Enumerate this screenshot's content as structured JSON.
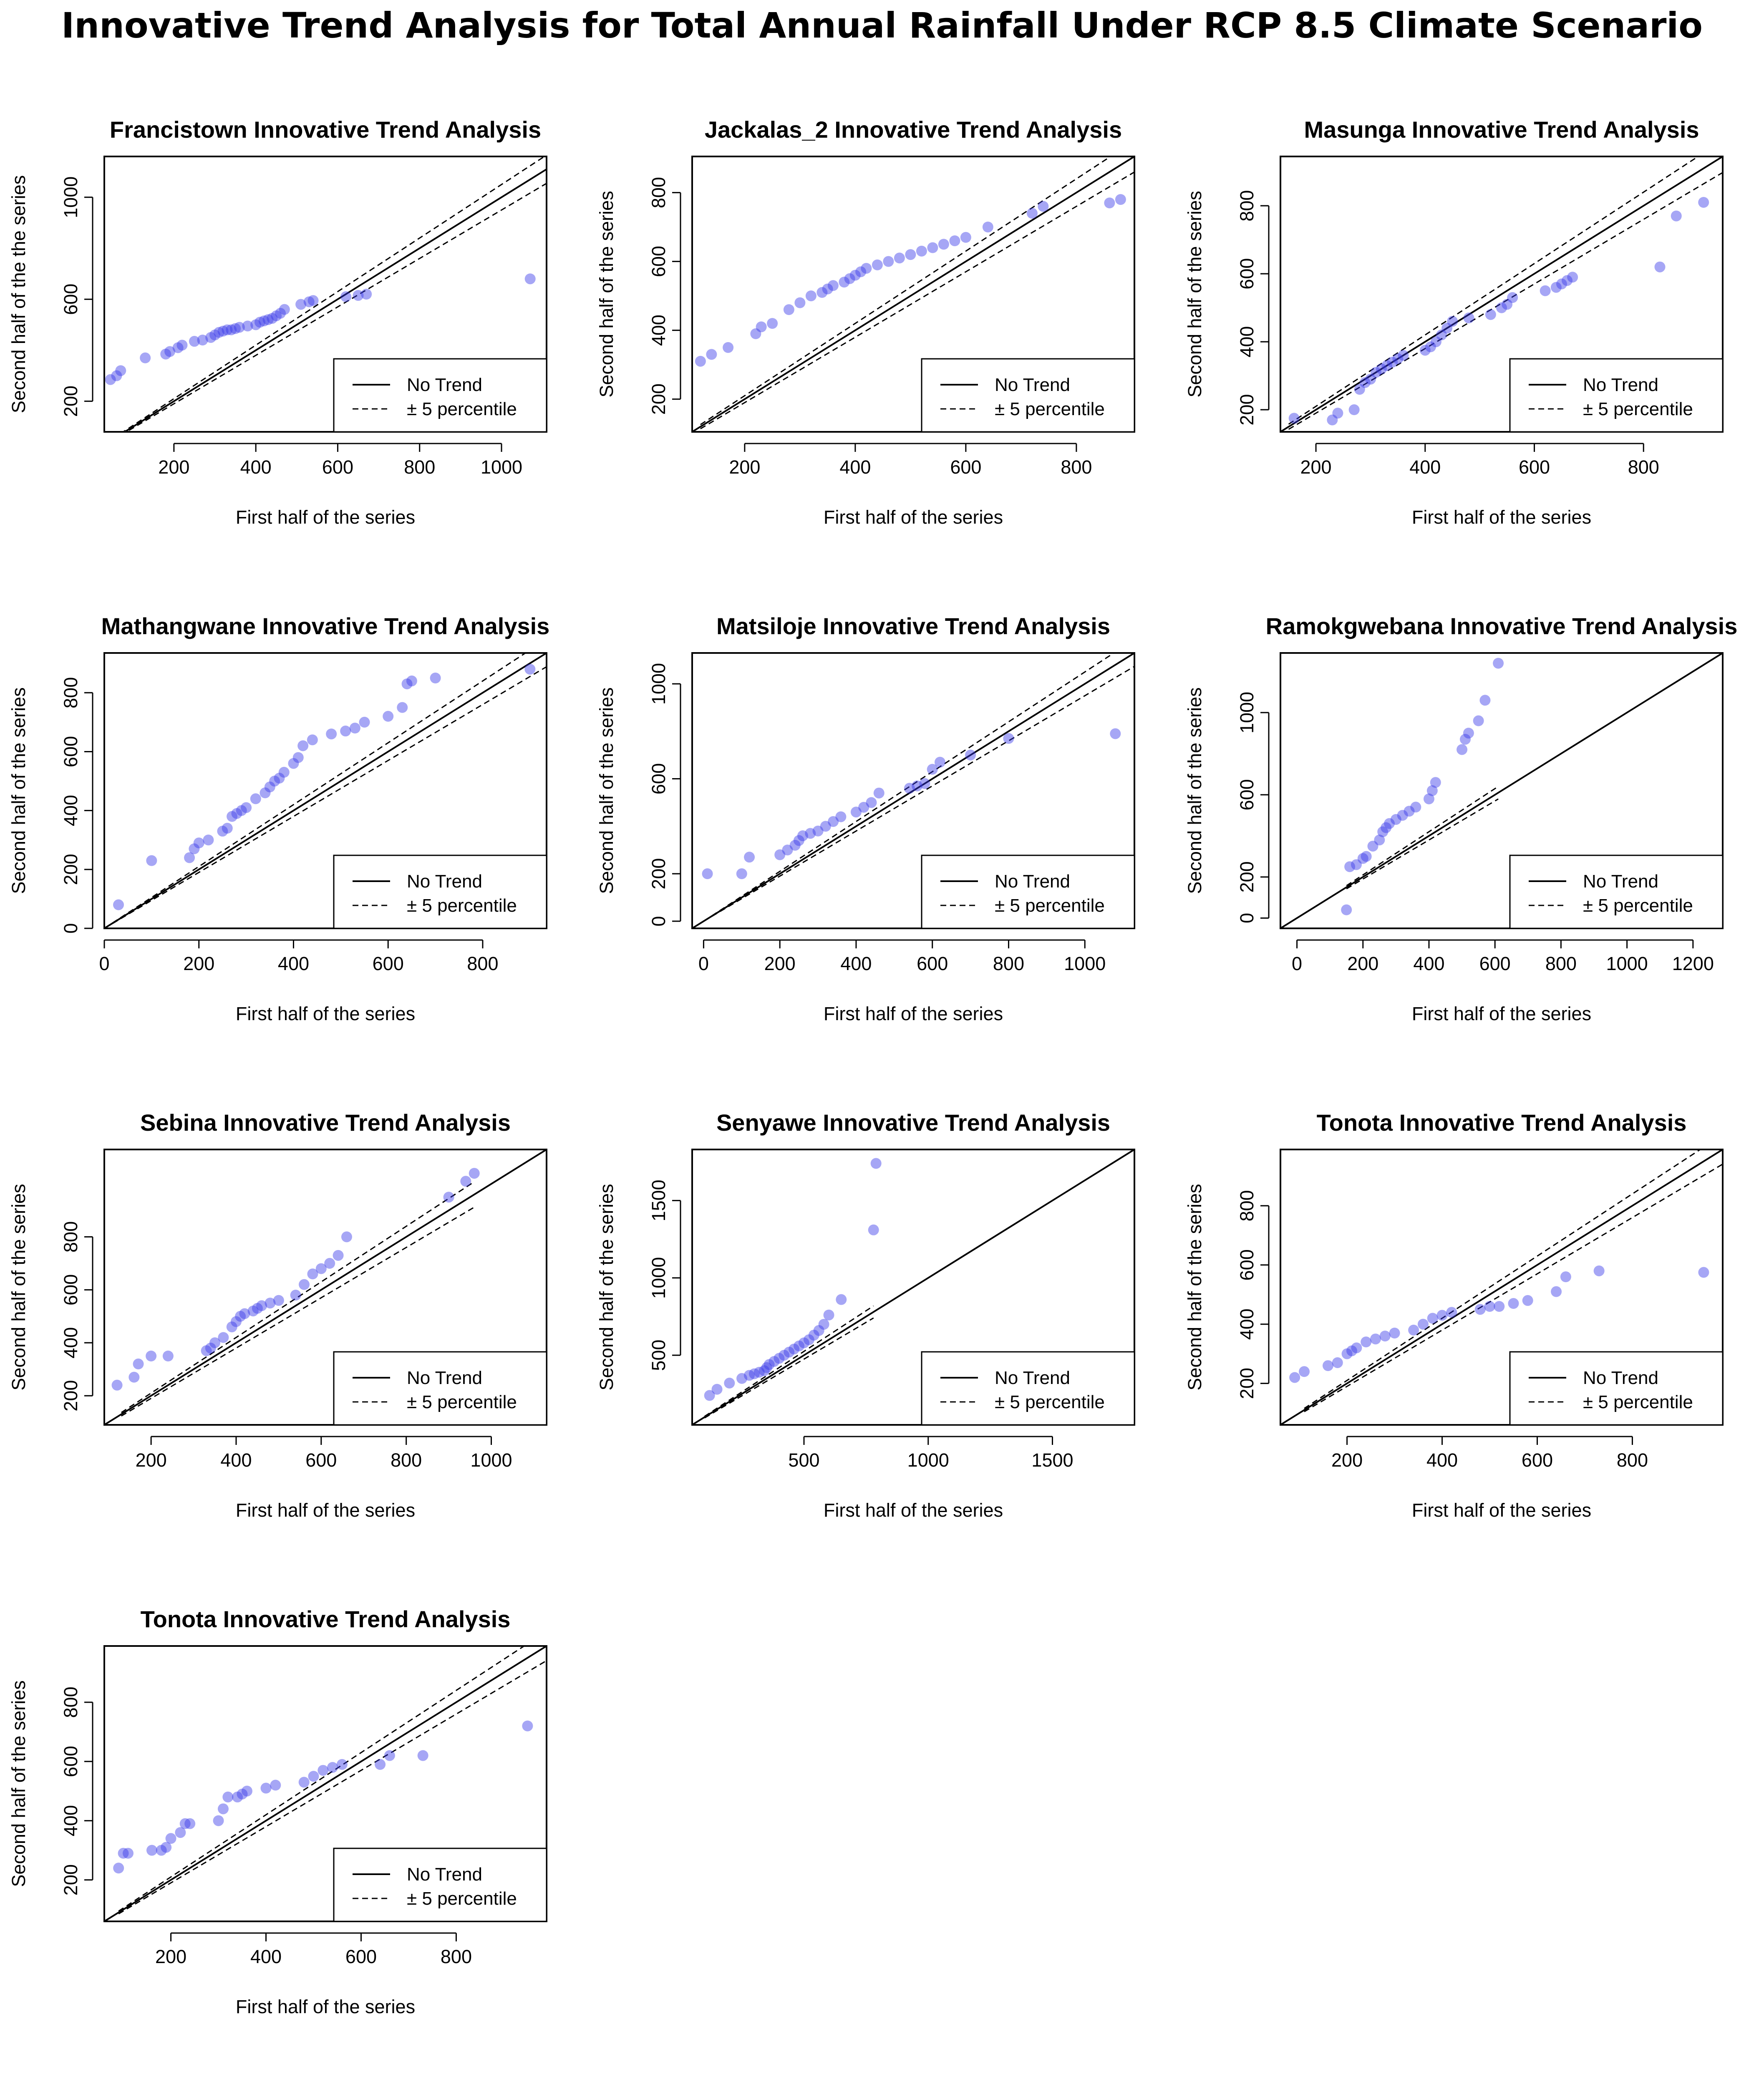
{
  "title": "Innovative Trend Analysis for Total Annual Rainfall Under RCP 8.5 Climate Scenario",
  "colors": {
    "point": "#3a3ae8",
    "line": "#000000",
    "frame": "#000000"
  },
  "chart_data": [
    {
      "type": "scatter",
      "title": "Francistown Innovative Trend Analysis",
      "xlabel": "First half of the series",
      "ylabel": "Second half of the the series",
      "xlim": [
        30,
        1110
      ],
      "ylim": [
        80,
        1160
      ],
      "xticks": [
        200,
        400,
        600,
        800,
        1000
      ],
      "yticks": [
        200,
        600,
        1000
      ],
      "legend": [
        "No Trend",
        "± 5 percentile"
      ],
      "legend_position": "bottom-right",
      "band": [
        50,
        1110
      ],
      "x": [
        45,
        60,
        70,
        130,
        180,
        190,
        210,
        220,
        250,
        270,
        290,
        300,
        310,
        320,
        330,
        340,
        350,
        360,
        380,
        400,
        410,
        420,
        430,
        440,
        450,
        460,
        470,
        510,
        530,
        540,
        620,
        650,
        670,
        1070
      ],
      "y": [
        285,
        300,
        320,
        370,
        385,
        395,
        410,
        420,
        435,
        440,
        450,
        460,
        470,
        475,
        480,
        480,
        485,
        490,
        495,
        500,
        510,
        515,
        520,
        525,
        535,
        545,
        560,
        580,
        590,
        595,
        610,
        615,
        620,
        680
      ]
    },
    {
      "type": "scatter",
      "title": "Jackalas_2 Innovative Trend Analysis",
      "xlabel": "First half of the series",
      "ylabel": "Second half of the series",
      "xlim": [
        105,
        905
      ],
      "ylim": [
        105,
        905
      ],
      "xticks": [
        200,
        400,
        600,
        800
      ],
      "yticks": [
        200,
        400,
        600,
        800
      ],
      "legend": [
        "No Trend",
        "± 5 percentile"
      ],
      "legend_position": "bottom-right",
      "band": [
        120,
        905
      ],
      "x": [
        120,
        140,
        170,
        220,
        230,
        250,
        280,
        300,
        320,
        340,
        350,
        360,
        380,
        390,
        400,
        410,
        420,
        440,
        460,
        480,
        500,
        520,
        540,
        560,
        580,
        600,
        640,
        720,
        740,
        860,
        880
      ],
      "y": [
        310,
        330,
        350,
        390,
        410,
        420,
        460,
        480,
        500,
        510,
        520,
        530,
        540,
        550,
        560,
        570,
        580,
        590,
        600,
        610,
        620,
        630,
        640,
        650,
        660,
        670,
        700,
        740,
        760,
        770,
        780
      ]
    },
    {
      "type": "scatter",
      "title": "Masunga Innovative Trend Analysis",
      "xlabel": "First half of the series",
      "ylabel": "Second half of the series",
      "xlim": [
        135,
        945
      ],
      "ylim": [
        135,
        945
      ],
      "xticks": [
        200,
        400,
        600,
        800
      ],
      "yticks": [
        200,
        400,
        600,
        800
      ],
      "legend": [
        "No Trend",
        "± 5 percentile"
      ],
      "legend_position": "bottom-right",
      "band": [
        150,
        945
      ],
      "x": [
        160,
        230,
        240,
        270,
        280,
        290,
        300,
        310,
        320,
        330,
        340,
        350,
        360,
        400,
        410,
        420,
        430,
        440,
        450,
        480,
        520,
        540,
        550,
        560,
        620,
        640,
        650,
        660,
        670,
        830,
        860,
        910
      ],
      "y": [
        175,
        170,
        190,
        200,
        260,
        280,
        290,
        310,
        320,
        330,
        340,
        350,
        360,
        375,
        385,
        400,
        420,
        440,
        460,
        470,
        480,
        500,
        510,
        530,
        550,
        560,
        570,
        580,
        590,
        620,
        770,
        810
      ]
    },
    {
      "type": "scatter",
      "title": "Mathangwane Innovative Trend Analysis",
      "xlabel": "First half of the series",
      "ylabel": "Second half of the series",
      "xlim": [
        0,
        935
      ],
      "ylim": [
        0,
        935
      ],
      "xticks": [
        0,
        200,
        400,
        600,
        800
      ],
      "yticks": [
        0,
        200,
        400,
        600,
        800
      ],
      "legend": [
        "No Trend",
        "± 5 percentile"
      ],
      "legend_position": "bottom-right",
      "band": [
        0,
        935
      ],
      "x": [
        30,
        100,
        180,
        190,
        200,
        220,
        250,
        260,
        270,
        280,
        290,
        300,
        320,
        340,
        350,
        360,
        370,
        380,
        400,
        410,
        420,
        440,
        480,
        510,
        530,
        550,
        600,
        630,
        640,
        650,
        700,
        900
      ],
      "y": [
        80,
        230,
        240,
        270,
        290,
        300,
        330,
        340,
        380,
        390,
        400,
        410,
        440,
        460,
        480,
        500,
        510,
        530,
        560,
        580,
        620,
        640,
        660,
        670,
        680,
        700,
        720,
        750,
        830,
        840,
        850,
        880
      ]
    },
    {
      "type": "scatter",
      "title": "Matsiloje Innovative Trend Analysis",
      "xlabel": "First half of the series",
      "ylabel": "Second half of the series",
      "xlim": [
        -30,
        1130
      ],
      "ylim": [
        -30,
        1130
      ],
      "xticks": [
        0,
        200,
        400,
        600,
        800,
        1000
      ],
      "yticks": [
        0,
        200,
        600,
        1000
      ],
      "legend": [
        "No Trend",
        "± 5 percentile"
      ],
      "legend_position": "bottom-right",
      "band": [
        0,
        1130
      ],
      "x": [
        10,
        100,
        120,
        200,
        220,
        240,
        250,
        260,
        280,
        300,
        320,
        340,
        360,
        400,
        420,
        440,
        460,
        540,
        560,
        580,
        600,
        620,
        700,
        800,
        1080
      ],
      "y": [
        200,
        200,
        270,
        280,
        300,
        320,
        340,
        360,
        370,
        380,
        400,
        420,
        440,
        460,
        480,
        500,
        540,
        560,
        570,
        580,
        640,
        670,
        700,
        770,
        790
      ]
    },
    {
      "type": "scatter",
      "title": "Ramokgwebana Innovative Trend Analysis",
      "xlabel": "First half of the series",
      "ylabel": "Second half of the series",
      "xlim": [
        -50,
        1290
      ],
      "ylim": [
        -50,
        1290
      ],
      "xticks": [
        0,
        200,
        400,
        600,
        800,
        1000,
        1200
      ],
      "yticks": [
        0,
        200,
        600,
        1000
      ],
      "legend": [
        "No Trend",
        "± 5 percentile"
      ],
      "legend_position": "bottom-right",
      "band": [
        150,
        610
      ],
      "x": [
        150,
        160,
        180,
        200,
        210,
        230,
        250,
        260,
        270,
        280,
        300,
        320,
        340,
        360,
        400,
        410,
        420,
        500,
        510,
        520,
        550,
        570,
        610
      ],
      "y": [
        40,
        250,
        260,
        290,
        300,
        350,
        380,
        420,
        440,
        460,
        480,
        500,
        520,
        540,
        580,
        620,
        660,
        820,
        870,
        900,
        960,
        1060,
        1240
      ]
    },
    {
      "type": "scatter",
      "title": "Sebina Innovative Trend Analysis",
      "xlabel": "First half of the series",
      "ylabel": "Second half of the series",
      "xlim": [
        90,
        1130
      ],
      "ylim": [
        90,
        1130
      ],
      "xticks": [
        200,
        400,
        600,
        800,
        1000
      ],
      "yticks": [
        200,
        400,
        600,
        800
      ],
      "legend": [
        "No Trend",
        "± 5 percentile"
      ],
      "legend_position": "bottom-right",
      "band": [
        130,
        960
      ],
      "x": [
        120,
        160,
        170,
        200,
        240,
        330,
        340,
        350,
        370,
        390,
        400,
        410,
        420,
        440,
        450,
        460,
        480,
        500,
        540,
        560,
        580,
        600,
        620,
        640,
        660,
        900,
        940,
        960
      ],
      "y": [
        240,
        270,
        320,
        350,
        350,
        370,
        380,
        400,
        420,
        460,
        480,
        500,
        510,
        520,
        530,
        540,
        550,
        560,
        580,
        620,
        660,
        680,
        700,
        730,
        800,
        950,
        1010,
        1040
      ]
    },
    {
      "type": "scatter",
      "title": "Senyawe Innovative Trend Analysis",
      "xlabel": "First half of the series",
      "ylabel": "Second half of the series",
      "xlim": [
        50,
        1830
      ],
      "ylim": [
        50,
        1830
      ],
      "xticks": [
        500,
        1000,
        1500
      ],
      "yticks": [
        500,
        1000,
        1500
      ],
      "legend": [
        "No Trend",
        "± 5 percentile"
      ],
      "legend_position": "bottom-right",
      "band": [
        100,
        780
      ],
      "x": [
        120,
        150,
        200,
        250,
        280,
        300,
        320,
        340,
        350,
        360,
        380,
        400,
        420,
        440,
        460,
        480,
        500,
        520,
        540,
        560,
        580,
        600,
        650,
        780,
        790
      ],
      "y": [
        240,
        280,
        320,
        350,
        370,
        380,
        390,
        400,
        420,
        440,
        460,
        480,
        500,
        520,
        540,
        560,
        580,
        600,
        630,
        660,
        700,
        760,
        860,
        1310,
        1740
      ]
    },
    {
      "type": "scatter",
      "title": "Tonota Innovative Trend Analysis",
      "xlabel": "First half of the series",
      "ylabel": "Second half of the series",
      "xlim": [
        60,
        990
      ],
      "ylim": [
        60,
        990
      ],
      "xticks": [
        200,
        400,
        600,
        800
      ],
      "yticks": [
        200,
        400,
        600,
        800
      ],
      "legend": [
        "No Trend",
        "± 5 percentile"
      ],
      "legend_position": "bottom-right",
      "band": [
        110,
        990
      ],
      "x": [
        90,
        110,
        160,
        180,
        200,
        210,
        220,
        240,
        260,
        280,
        300,
        340,
        360,
        380,
        400,
        420,
        480,
        500,
        520,
        550,
        580,
        640,
        660,
        730,
        950
      ],
      "y": [
        220,
        240,
        260,
        270,
        300,
        310,
        320,
        340,
        350,
        360,
        370,
        380,
        400,
        420,
        430,
        440,
        450,
        460,
        460,
        470,
        480,
        510,
        560,
        580,
        575
      ]
    },
    {
      "type": "scatter",
      "title": "Tonota Innovative Trend Analysis",
      "xlabel": "First half of the series",
      "ylabel": "Second half of the series",
      "xlim": [
        60,
        990
      ],
      "ylim": [
        60,
        990
      ],
      "xticks": [
        200,
        400,
        600,
        800
      ],
      "yticks": [
        200,
        400,
        600,
        800
      ],
      "legend": [
        "No Trend",
        "± 5 percentile"
      ],
      "legend_position": "bottom-right",
      "band": [
        90,
        990
      ],
      "x": [
        90,
        100,
        110,
        160,
        180,
        190,
        200,
        220,
        230,
        240,
        300,
        310,
        320,
        340,
        350,
        360,
        400,
        420,
        480,
        500,
        520,
        540,
        560,
        640,
        660,
        730,
        950
      ],
      "y": [
        240,
        290,
        290,
        300,
        300,
        310,
        340,
        360,
        390,
        390,
        400,
        440,
        480,
        480,
        490,
        500,
        510,
        520,
        530,
        550,
        570,
        580,
        590,
        590,
        620,
        620,
        720
      ]
    }
  ]
}
